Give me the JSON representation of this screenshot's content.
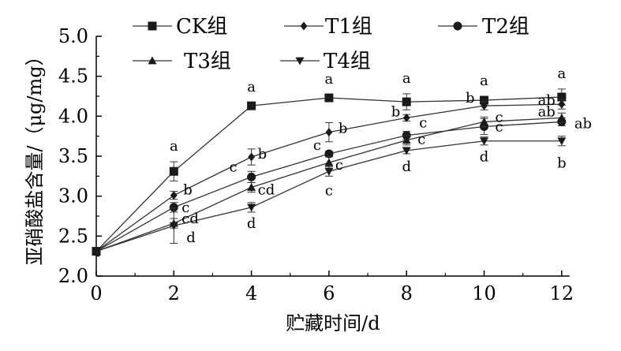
{
  "chart_data": {
    "type": "line",
    "title": "",
    "xlabel": "贮藏时间/d",
    "ylabel": "亚硝酸盐含量/（μg/mg）",
    "xlim": [
      0,
      12
    ],
    "ylim": [
      2.0,
      5.0
    ],
    "x_ticks": [
      "0",
      "2",
      "4",
      "6",
      "8",
      "10",
      "12"
    ],
    "y_ticks": [
      "2.0",
      "2.5",
      "3.0",
      "3.5",
      "4.0",
      "4.5",
      "5.0"
    ],
    "grid": false,
    "legend_position": "top",
    "x": [
      0,
      2,
      4,
      6,
      8,
      10,
      12
    ],
    "series": [
      {
        "name": "CK组",
        "marker": "square",
        "values": [
          2.31,
          3.31,
          4.13,
          4.23,
          4.18,
          4.2,
          4.24
        ],
        "errors": [
          0.0,
          0.12,
          0.04,
          0.04,
          0.1,
          0.05,
          0.1
        ],
        "letters": [
          "",
          "a",
          "a",
          "a",
          "a",
          "a",
          "a"
        ]
      },
      {
        "name": "T1组",
        "marker": "diamond",
        "values": [
          2.31,
          3.01,
          3.49,
          3.8,
          3.98,
          4.13,
          4.15
        ],
        "errors": [
          0.0,
          0.05,
          0.1,
          0.12,
          0.04,
          0.05,
          0.06
        ],
        "letters": [
          "",
          "b",
          "b",
          "b",
          "b",
          "b",
          "ab"
        ]
      },
      {
        "name": "T2组",
        "marker": "circle",
        "values": [
          2.31,
          2.86,
          3.24,
          3.53,
          3.76,
          3.87,
          3.93
        ],
        "errors": [
          0.0,
          0.06,
          0.07,
          0.03,
          0.05,
          0.1,
          0.05
        ],
        "letters": [
          "",
          "c",
          "c",
          "c",
          "c",
          "c",
          "ab"
        ]
      },
      {
        "name": "T3组",
        "marker": "triangle-up",
        "values": [
          2.31,
          2.66,
          3.11,
          3.42,
          3.7,
          3.93,
          3.98
        ],
        "errors": [
          0.0,
          0.06,
          0.06,
          0.07,
          0.06,
          0.06,
          0.06
        ],
        "letters": [
          "",
          "cd",
          "cd",
          "c",
          "c",
          "c",
          "ab"
        ]
      },
      {
        "name": "T4组",
        "marker": "triangle-down",
        "values": [
          2.31,
          2.63,
          2.86,
          3.31,
          3.57,
          3.69,
          3.69
        ],
        "errors": [
          0.0,
          0.22,
          0.06,
          0.06,
          0.04,
          0.05,
          0.06
        ],
        "letters": [
          "",
          "d",
          "d",
          "c",
          "d",
          "d",
          "b"
        ]
      }
    ]
  }
}
